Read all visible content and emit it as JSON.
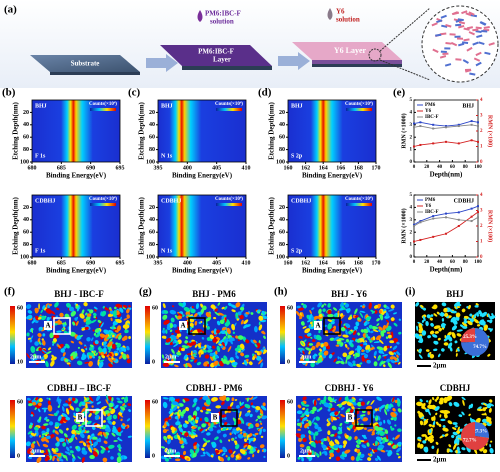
{
  "panel_a": {
    "label": "(a)",
    "drop1": [
      "PM6:IBC-F",
      "solution"
    ],
    "drop2": [
      "Y6",
      "solution"
    ],
    "substrate": "Substrate",
    "layer1": [
      "PM6:IBC-F",
      "Layer"
    ],
    "layer2": "Y6  Layer"
  },
  "xps": {
    "y_label": "Etching Depth(nm)",
    "x_label": "Binding Energy(eV)",
    "legend_title": "Counts(×10⁴)",
    "ylim": [
      0,
      100
    ],
    "yticks": [
      20,
      40,
      60,
      80,
      100
    ],
    "samples": [
      "BHJ",
      "CDBHJ"
    ],
    "panels": [
      {
        "label": "(b)",
        "element": "F 1s",
        "xlim": [
          680,
          695
        ],
        "xticks": [
          680,
          685,
          690,
          695
        ]
      },
      {
        "label": "(c)",
        "element": "N 1s",
        "xlim": [
          395,
          410
        ],
        "xticks": [
          395,
          400,
          405,
          410
        ]
      },
      {
        "label": "(d)",
        "element": "S 2p",
        "xlim": [
          160,
          170
        ],
        "xticks": [
          160,
          162,
          164,
          166,
          168,
          170
        ]
      }
    ]
  },
  "panel_e": {
    "label": "(e)",
    "x_label": "Depth(nm)",
    "y_label": "RMN (×1000)",
    "y2_label": "RMN (×100)",
    "xlim": [
      0,
      100
    ],
    "xticks": [
      0,
      20,
      40,
      60,
      80,
      100
    ],
    "ylim": [
      0,
      5
    ],
    "yticks": [
      0,
      1,
      2,
      3,
      4,
      5
    ],
    "y2lim": [
      0,
      4
    ],
    "y2ticks": [
      0,
      1,
      2,
      3,
      4
    ],
    "charts": [
      {
        "title": "BHJ",
        "x": [
          0,
          10,
          30,
          50,
          70,
          90,
          100
        ],
        "series": [
          {
            "name": "PM6",
            "color": "#2b45c8",
            "values": [
              3.1,
              3.2,
              3.0,
              2.9,
              3.0,
              3.3,
              3.2
            ]
          },
          {
            "name": "Y6",
            "color": "#d42020",
            "axis": "y2",
            "values": [
              1.0,
              1.1,
              1.2,
              1.3,
              1.2,
              1.4,
              1.3
            ]
          },
          {
            "name": "IBC-F",
            "color": "#888888",
            "values": [
              2.8,
              2.9,
              2.7,
              2.8,
              2.9,
              3.0,
              2.9
            ]
          }
        ]
      },
      {
        "title": "CDBHJ",
        "x": [
          0,
          10,
          30,
          50,
          70,
          90,
          100
        ],
        "series": [
          {
            "name": "PM6",
            "color": "#2b45c8",
            "values": [
              2.6,
              2.9,
              3.3,
              3.5,
              3.6,
              3.9,
              4.1
            ]
          },
          {
            "name": "Y6",
            "color": "#d42020",
            "axis": "y2",
            "values": [
              1.0,
              1.1,
              1.3,
              1.5,
              2.0,
              2.6,
              2.9
            ]
          },
          {
            "name": "IBC-F",
            "color": "#888888",
            "values": [
              2.5,
              2.8,
              3.1,
              3.2,
              3.0,
              2.9,
              3.2
            ]
          }
        ]
      }
    ]
  },
  "maps": {
    "colorbar_max": 60,
    "scale": "2μm",
    "markers": [
      "A",
      "B"
    ],
    "panels": [
      {
        "label": "(f)",
        "titles": [
          "BHJ - IBC-F",
          "CDBHJ – IBC-F"
        ],
        "colorbar_min": [
          10,
          0
        ]
      },
      {
        "label": "(g)",
        "titles": [
          "BHJ - PM6",
          "CDBHJ - PM6"
        ],
        "colorbar_min": [
          0,
          0
        ]
      },
      {
        "label": "(h)",
        "titles": [
          "BHJ - Y6",
          "CDBHJ - Y6"
        ],
        "colorbar_min": [
          0,
          0
        ]
      }
    ]
  },
  "panel_i": {
    "label": "(i)",
    "scale": "2μm",
    "samples": [
      {
        "title": "BHJ",
        "pie": [
          74.7,
          25.3
        ],
        "pie_labels": [
          "74.7%",
          "25.3%"
        ]
      },
      {
        "title": "CDBHJ",
        "pie": [
          27.3,
          72.7
        ],
        "pie_labels": [
          "27.3%",
          "72.7%"
        ]
      }
    ]
  }
}
